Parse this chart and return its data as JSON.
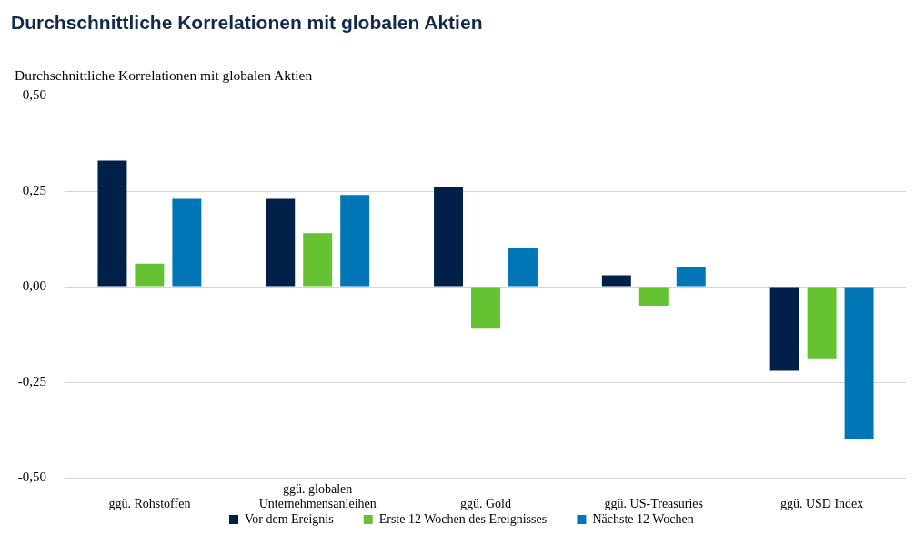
{
  "chart_data": {
    "type": "bar",
    "title": "Durchschnittliche Korrelationen mit globalen Aktien",
    "ylabel": "Durchschnittliche Korrelationen mit globalen Aktien",
    "categories": [
      "ggü. Rohstoffen",
      "ggü. globalen Unternehmensanleihen",
      "ggü. Gold",
      "ggü. US-Treasuries",
      "ggü. USD Index"
    ],
    "series": [
      {
        "name": "Vor dem Ereignis",
        "color": "#00204a",
        "values": [
          0.33,
          0.23,
          0.26,
          0.03,
          -0.22
        ]
      },
      {
        "name": "Erste 12 Wochen des Ereignisses",
        "color": "#65c332",
        "values": [
          0.06,
          0.14,
          -0.11,
          -0.05,
          -0.19
        ]
      },
      {
        "name": "Nächste 12 Wochen",
        "color": "#0076b6",
        "values": [
          0.23,
          0.24,
          0.1,
          0.05,
          -0.4
        ]
      }
    ],
    "ylim": [
      -0.5,
      0.5
    ],
    "yticks": [
      {
        "value": -0.5,
        "label": "-0,50"
      },
      {
        "value": -0.25,
        "label": "-0,25"
      },
      {
        "value": 0,
        "label": "0,00"
      },
      {
        "value": 0.25,
        "label": "0,25"
      },
      {
        "value": 0.5,
        "label": "0,50"
      }
    ],
    "grid": "y",
    "legend": "bottom"
  }
}
